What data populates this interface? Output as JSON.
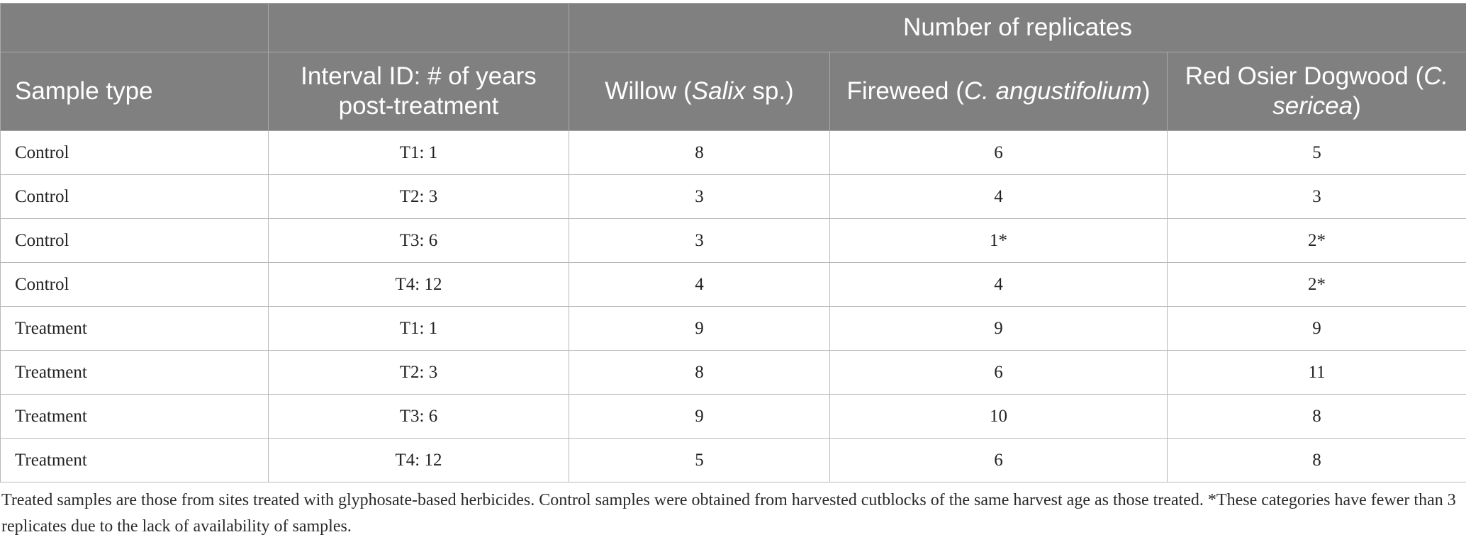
{
  "table": {
    "group_header": "Number of replicates",
    "columns": {
      "sample_type": "Sample type",
      "interval": "Interval ID: # of years post-treatment",
      "willow": {
        "pre": "Willow (",
        "italic": "Salix",
        "post": " sp.)"
      },
      "fireweed": {
        "pre": "Fireweed (",
        "italic": "C. angustifolium",
        "post": ")"
      },
      "dogwood": {
        "pre": "Red Osier Dogwood (",
        "italic": "C. sericea",
        "post": ")"
      }
    },
    "rows": [
      {
        "sample_type": "Control",
        "interval": "T1: 1",
        "willow": "8",
        "fireweed": "6",
        "dogwood": "5"
      },
      {
        "sample_type": "Control",
        "interval": "T2: 3",
        "willow": "3",
        "fireweed": "4",
        "dogwood": "3"
      },
      {
        "sample_type": "Control",
        "interval": "T3: 6",
        "willow": "3",
        "fireweed": "1*",
        "dogwood": "2*"
      },
      {
        "sample_type": "Control",
        "interval": "T4: 12",
        "willow": "4",
        "fireweed": "4",
        "dogwood": "2*"
      },
      {
        "sample_type": "Treatment",
        "interval": "T1: 1",
        "willow": "9",
        "fireweed": "9",
        "dogwood": "9"
      },
      {
        "sample_type": "Treatment",
        "interval": "T2: 3",
        "willow": "8",
        "fireweed": "6",
        "dogwood": "11"
      },
      {
        "sample_type": "Treatment",
        "interval": "T3: 6",
        "willow": "9",
        "fireweed": "10",
        "dogwood": "8"
      },
      {
        "sample_type": "Treatment",
        "interval": "T4: 12",
        "willow": "5",
        "fireweed": "6",
        "dogwood": "8"
      }
    ]
  },
  "footnote": "Treated samples are those from sites treated with glyphosate-based herbicides. Control samples were obtained from harvested cutblocks of the same harvest age as those treated. *These categories have fewer than 3 replicates due to the lack of availability of samples.",
  "colors": {
    "header_bg": "#808080",
    "header_text": "#ffffff",
    "grid": "#b8b8b8"
  }
}
